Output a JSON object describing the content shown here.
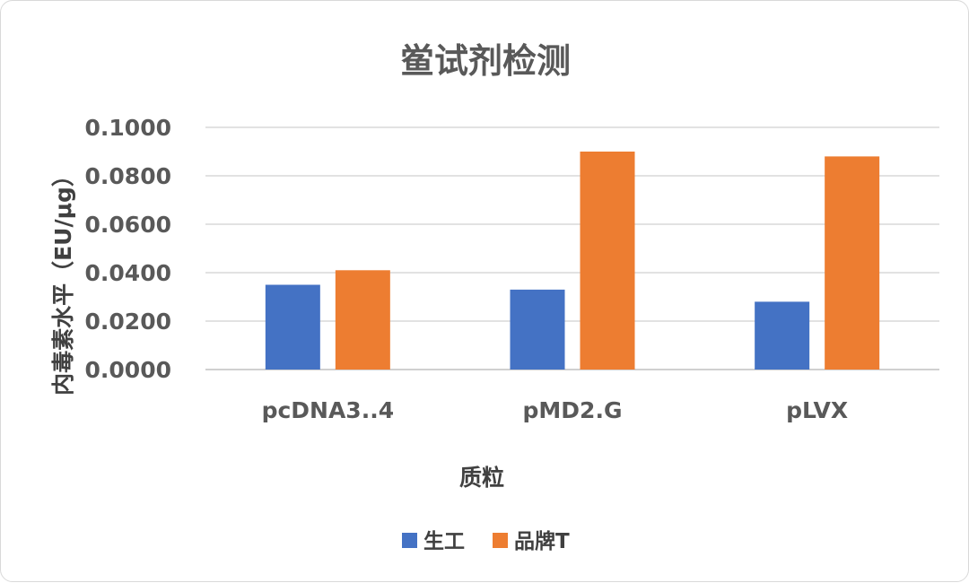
{
  "chart_data": {
    "type": "bar",
    "title": "鲎试剂检测",
    "xlabel": "质粒",
    "ylabel": "内毒素水平（EU/μg）",
    "categories": [
      "pcDNA3..4",
      "pMD2.G",
      "pLVX"
    ],
    "series": [
      {
        "name": "生工",
        "color": "#4472c4",
        "values": [
          0.035,
          0.033,
          0.028
        ]
      },
      {
        "name": "品牌T",
        "color": "#ed7d31",
        "values": [
          0.041,
          0.09,
          0.088
        ]
      }
    ],
    "ylim": [
      0,
      0.1
    ],
    "yticks": [
      "0.0000",
      "0.0200",
      "0.0400",
      "0.0600",
      "0.0800",
      "0.1000"
    ],
    "grid": true,
    "legend_position": "bottom"
  }
}
